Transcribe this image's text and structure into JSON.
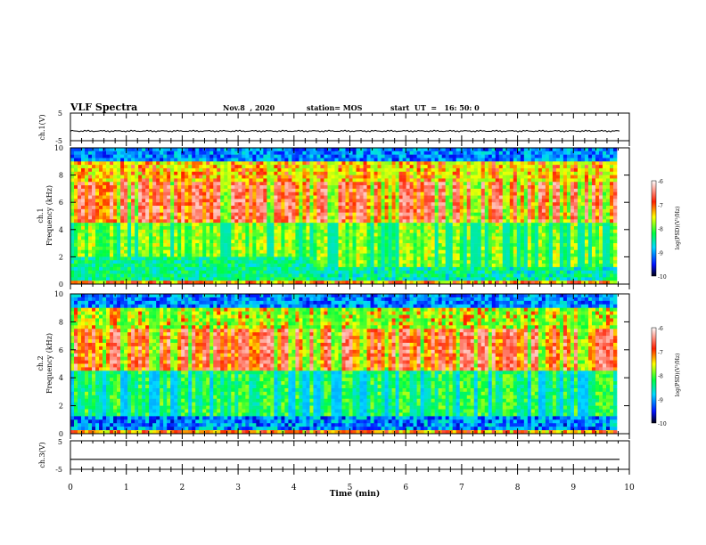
{
  "header": {
    "title": "VLF Spectra",
    "date": "Nov.8  , 2020",
    "station": "station= MOS",
    "start": "start  UT  =   16: 50: 0"
  },
  "chart_data": {
    "type": "heatmap",
    "x": {
      "label": "Time  (min)",
      "lim": [
        0,
        10
      ],
      "ticks": [
        0,
        1,
        2,
        3,
        4,
        5,
        6,
        7,
        8,
        9,
        10
      ]
    },
    "panels": [
      {
        "kind": "waveform",
        "ylabel": "ch.1(V)",
        "ylim": [
          -5,
          5
        ],
        "yticks": [
          "5",
          "-5"
        ],
        "level": -1.5
      },
      {
        "kind": "spectrogram",
        "ylabel": "ch.1",
        "ylabel2": "Frequency  (kHz)",
        "ylim": [
          0,
          10
        ],
        "yticks": [
          "0",
          "2",
          "4",
          "6",
          "8",
          "10"
        ],
        "colorbar": {
          "label": "log(PSD)(V²/Hz)",
          "range": [
            -10,
            -6
          ],
          "ticks": [
            "-6",
            "-7",
            "-8",
            "-9",
            "-10"
          ]
        }
      },
      {
        "kind": "spectrogram",
        "ylabel": "ch.2",
        "ylabel2": "Frequency  (kHz)",
        "ylim": [
          0,
          10
        ],
        "yticks": [
          "0",
          "2",
          "4",
          "6",
          "8",
          "10"
        ],
        "colorbar": {
          "label": "log(PSD)(V²/Hz)",
          "range": [
            -10,
            -6
          ],
          "ticks": [
            "-6",
            "-7",
            "-8",
            "-9",
            "-10"
          ]
        }
      },
      {
        "kind": "waveform",
        "ylabel": "ch.3(V)",
        "ylim": [
          -5,
          5
        ],
        "yticks": [
          "5",
          "-5"
        ],
        "level": -1.5
      }
    ],
    "data_end_min": 9.83
  }
}
